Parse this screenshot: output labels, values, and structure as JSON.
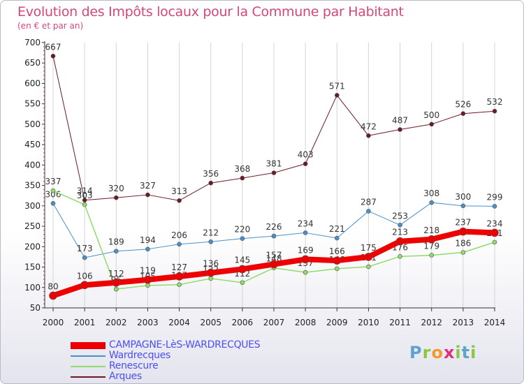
{
  "title": "Evolution des Impôts locaux pour la Commune par Habitant",
  "subtitle": "(en € et par an)",
  "logo": {
    "text": "Proxiti",
    "letter_colors": [
      "#5fa2cc",
      "#8cc63f",
      "#f29a2e",
      "#e0307a",
      "#8cc63f",
      "#5fa2cc",
      "#8cc63f"
    ]
  },
  "chart_data": {
    "type": "line",
    "x": [
      2000,
      2001,
      2002,
      2003,
      2004,
      2005,
      2006,
      2007,
      2008,
      2009,
      2010,
      2011,
      2012,
      2013,
      2014
    ],
    "ylim": [
      50,
      700
    ],
    "yticks": [
      50,
      100,
      150,
      200,
      250,
      300,
      350,
      400,
      450,
      500,
      550,
      600,
      650,
      700
    ],
    "grid": "vertical",
    "legend_position": "bottom-left",
    "series": [
      {
        "name": "Arques",
        "color": "#6b1a24",
        "line_width": 1,
        "marker_r": 3,
        "values": [
          667,
          314,
          320,
          327,
          313,
          356,
          368,
          381,
          403,
          571,
          472,
          487,
          500,
          526,
          532
        ],
        "labels": [
          "667",
          "314",
          "320",
          "327",
          "313",
          "356",
          "368",
          "381",
          "403",
          "571",
          "472",
          "487",
          "500",
          "526",
          "532"
        ]
      },
      {
        "name": "Wardrecques",
        "color": "#4a90c6",
        "line_width": 1,
        "marker_r": 3,
        "values": [
          306,
          173,
          189,
          194,
          206,
          212,
          220,
          226,
          234,
          221,
          287,
          253,
          308,
          300,
          299
        ],
        "labels": [
          "306",
          "173",
          "189",
          "194",
          "206",
          "212",
          "220",
          "226",
          "234",
          "221",
          "287",
          "253",
          "308",
          "300",
          "299"
        ]
      },
      {
        "name": "Renescure",
        "color": "#90dc6a",
        "line_width": 1.5,
        "marker_r": 3,
        "values": [
          337,
          303,
          96,
          105,
          107,
          122,
          112,
          148,
          137,
          146,
          151,
          176,
          179,
          186,
          211
        ],
        "labels": [
          "337",
          "303",
          "96",
          "105",
          "107",
          "122",
          "112",
          "148",
          "137",
          "146",
          "151",
          "176",
          "179",
          "186",
          "211"
        ]
      },
      {
        "name": "CAMPAGNE-LèS-WARDRECQUES",
        "color": "#ee0000",
        "line_width": 8,
        "marker_r": 5.5,
        "values": [
          80,
          106,
          112,
          119,
          127,
          136,
          145,
          157,
          169,
          166,
          175,
          213,
          218,
          237,
          234
        ],
        "labels": [
          "80",
          "106",
          "112",
          "119",
          "127",
          "136",
          "145",
          "157",
          "169",
          "166",
          "175",
          "213",
          "218",
          "237",
          "234"
        ]
      }
    ]
  },
  "legend": [
    {
      "label": "CAMPAGNE-LèS-WARDRECQUES",
      "color": "#ee0000",
      "text_color": "#4e4ef0",
      "thickness": 10
    },
    {
      "label": "Wardrecques",
      "color": "#4a90c6",
      "text_color": "#4e4ef0",
      "thickness": 2
    },
    {
      "label": "Renescure",
      "color": "#90dc6a",
      "text_color": "#4e4ef0",
      "thickness": 2
    },
    {
      "label": "Arques",
      "color": "#6b1a24",
      "text_color": "#4e4ef0",
      "thickness": 2
    }
  ]
}
